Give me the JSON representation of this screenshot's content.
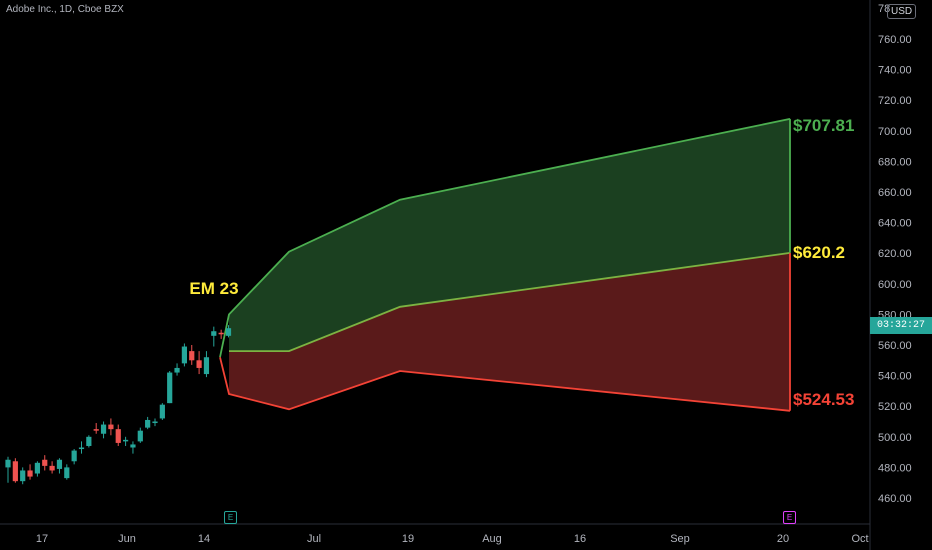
{
  "header": {
    "symbol_title": "Adobe Inc., 1D, Cboe BZX",
    "currency": "USD"
  },
  "price_axis": {
    "labels": [
      "760.00",
      "740.00",
      "720.00",
      "700.00",
      "680.00",
      "660.00",
      "640.00",
      "620.00",
      "600.00",
      "580.00",
      "560.00",
      "540.00",
      "520.00",
      "500.00",
      "480.00",
      "460.00"
    ],
    "top_partial": "78",
    "current_time_label": "03:32:27"
  },
  "time_axis": {
    "labels": [
      "17",
      "Jun",
      "14",
      "Jul",
      "19",
      "Aug",
      "16",
      "Sep",
      "20",
      "Oct"
    ]
  },
  "annotations": {
    "em_label": "EM 23",
    "upper_label": "$707.81",
    "mid_label": "$620.2",
    "lower_label": "$524.53",
    "upper_color": "#4caf50",
    "mid_color": "#ffeb3b",
    "lower_color": "#f44336"
  },
  "earnings_markers": [
    {
      "letter": "E",
      "color": "#26a69a"
    },
    {
      "letter": "E",
      "color": "#e040fb"
    }
  ],
  "colors": {
    "bull": "#26a69a",
    "bear": "#ef5350",
    "green_fill": "#1b4020",
    "red_fill": "#5a1a1a"
  },
  "candles": [
    {
      "o": 480,
      "h": 487,
      "l": 470,
      "c": 485
    },
    {
      "o": 484,
      "h": 486,
      "l": 470,
      "c": 471
    },
    {
      "o": 471,
      "h": 480,
      "l": 469,
      "c": 478
    },
    {
      "o": 478,
      "h": 482,
      "l": 472,
      "c": 474
    },
    {
      "o": 476,
      "h": 484,
      "l": 474,
      "c": 483
    },
    {
      "o": 485,
      "h": 488,
      "l": 478,
      "c": 481
    },
    {
      "o": 481,
      "h": 484,
      "l": 476,
      "c": 478
    },
    {
      "o": 479,
      "h": 486,
      "l": 476,
      "c": 485
    },
    {
      "o": 473,
      "h": 482,
      "l": 472,
      "c": 480
    },
    {
      "o": 484,
      "h": 492,
      "l": 482,
      "c": 491
    },
    {
      "o": 492,
      "h": 497,
      "l": 489,
      "c": 493
    },
    {
      "o": 494,
      "h": 501,
      "l": 493,
      "c": 500
    },
    {
      "o": 505,
      "h": 509,
      "l": 502,
      "c": 504
    },
    {
      "o": 502,
      "h": 510,
      "l": 499,
      "c": 508
    },
    {
      "o": 508,
      "h": 512,
      "l": 501,
      "c": 505
    },
    {
      "o": 505,
      "h": 508,
      "l": 494,
      "c": 496
    },
    {
      "o": 497,
      "h": 500,
      "l": 494,
      "c": 498
    },
    {
      "o": 493,
      "h": 497,
      "l": 489,
      "c": 495
    },
    {
      "o": 497,
      "h": 506,
      "l": 496,
      "c": 504
    },
    {
      "o": 506,
      "h": 513,
      "l": 505,
      "c": 511
    },
    {
      "o": 509,
      "h": 512,
      "l": 507,
      "c": 510
    },
    {
      "o": 512,
      "h": 522,
      "l": 511,
      "c": 521
    },
    {
      "o": 522,
      "h": 543,
      "l": 522,
      "c": 542
    },
    {
      "o": 542,
      "h": 548,
      "l": 540,
      "c": 545
    },
    {
      "o": 548,
      "h": 561,
      "l": 546,
      "c": 559
    },
    {
      "o": 556,
      "h": 560,
      "l": 547,
      "c": 550
    },
    {
      "o": 550,
      "h": 556,
      "l": 541,
      "c": 545
    },
    {
      "o": 541,
      "h": 556,
      "l": 539,
      "c": 552
    },
    {
      "o": 566,
      "h": 572,
      "l": 559,
      "c": 569
    },
    {
      "o": 568,
      "h": 570,
      "l": 564,
      "c": 567
    },
    {
      "o": 566,
      "h": 573,
      "l": 565,
      "c": 571
    }
  ]
}
